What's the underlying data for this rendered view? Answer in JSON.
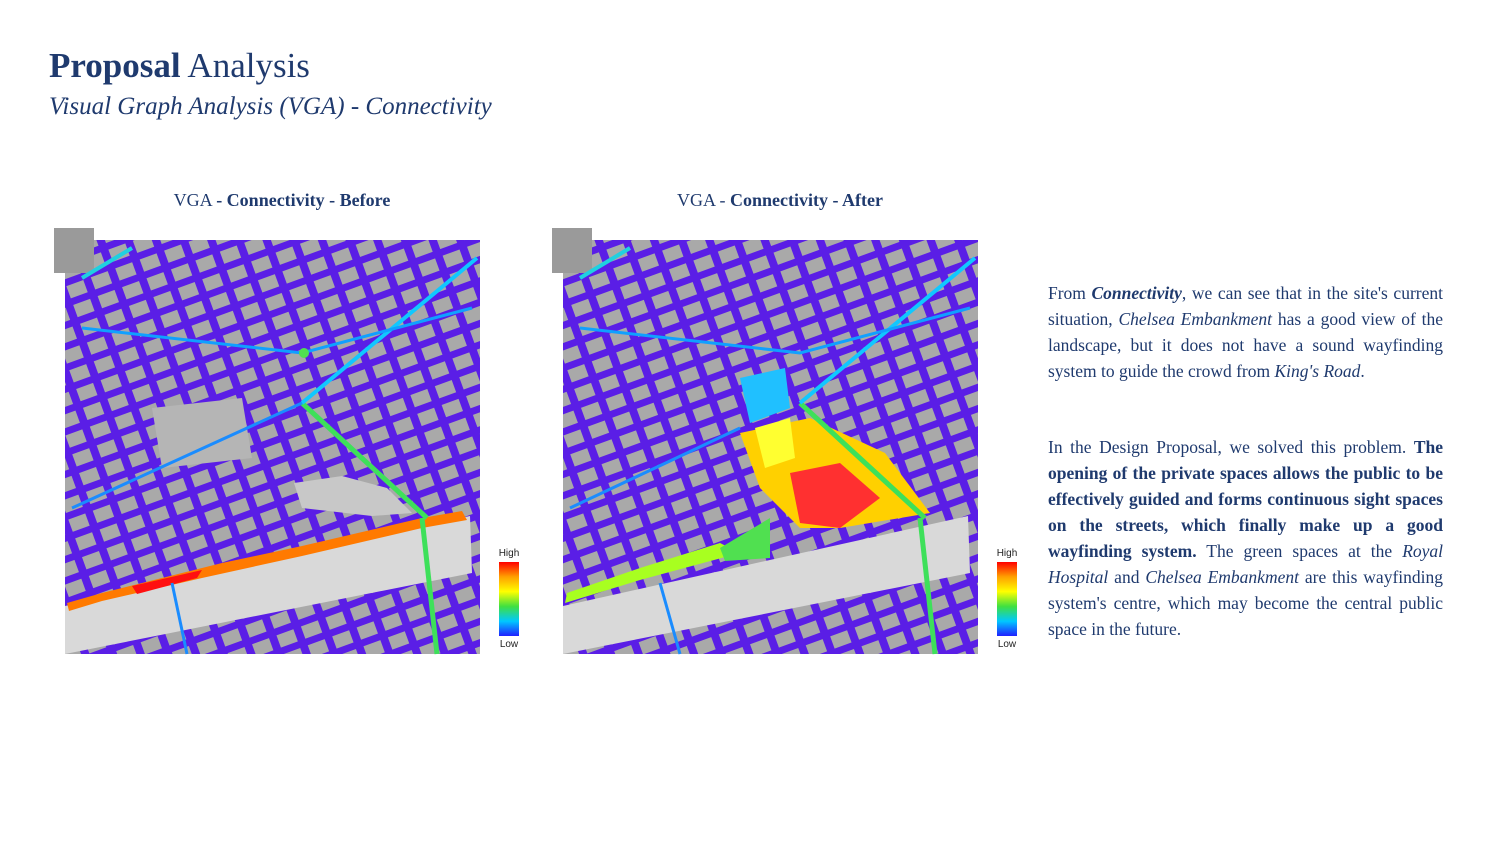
{
  "header": {
    "title_bold": "Proposal",
    "title_regular": "Analysis",
    "subtitle": "Visual Graph Analysis (VGA) - Connectivity"
  },
  "maps": [
    {
      "caption_prefix": "VGA",
      "caption_bold": "- Connectivity - Before",
      "legend_high": "High",
      "legend_low": "Low"
    },
    {
      "caption_prefix": "VGA -",
      "caption_bold": "Connectivity - After",
      "legend_high": "High",
      "legend_low": "Low"
    }
  ],
  "legend_colors": [
    "#ff0000",
    "#ffa000",
    "#ffff00",
    "#40e040",
    "#00c8ff",
    "#2020ff"
  ],
  "text": {
    "p1": {
      "a": "From ",
      "b": "Connectivity",
      "c": ", we can see that in the site's current situation, ",
      "d": "Chelsea Embankment",
      "e": " has a good view of the landscape, but it does not have a sound wayfinding system to guide the crowd from ",
      "f": "King's Road",
      "g": "."
    },
    "p2": {
      "a": "In the Design Proposal, we solved this problem. ",
      "b": "The opening of the private spaces allows the public to be effectively guided and forms continuous sight spaces on the streets, which finally make up a good wayfinding system.",
      "c": " The green spaces at the ",
      "d": "Royal Hospital",
      "e": " and ",
      "f": "Chelsea Embankment",
      "g": " are this wayfinding system's centre, which may become the central public space in the future."
    }
  }
}
